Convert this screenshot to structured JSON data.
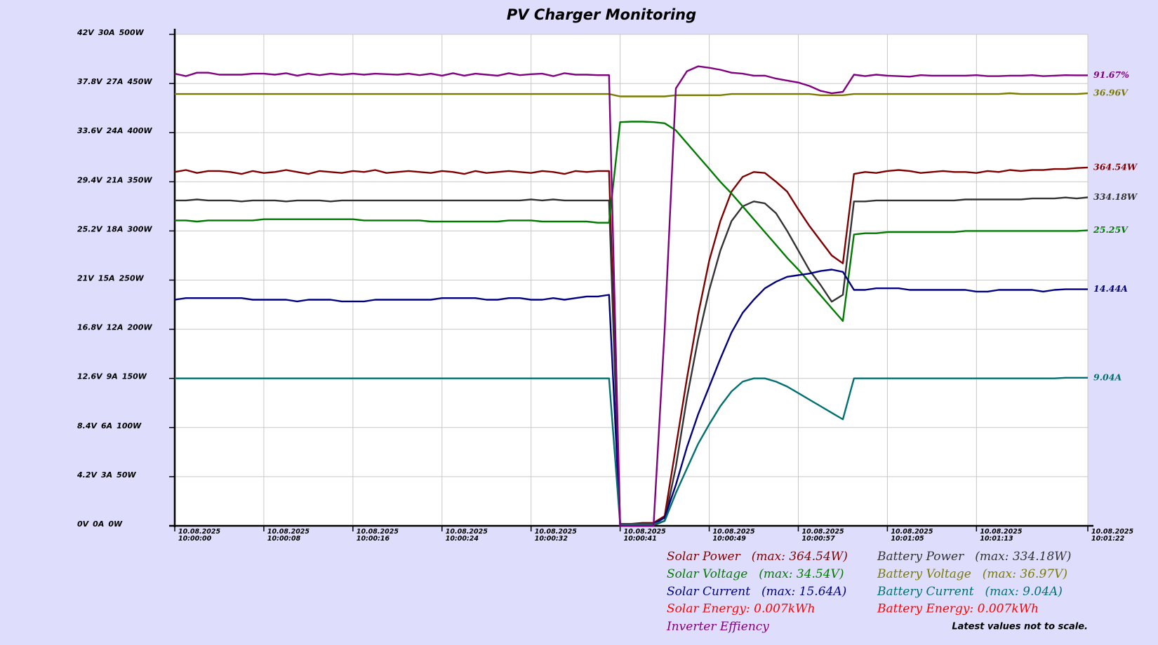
{
  "chart_data": {
    "type": "line",
    "title": "PV Charger Monitoring",
    "x": [
      0,
      1,
      2,
      3,
      4,
      5,
      6,
      7,
      8,
      9,
      10,
      11,
      12,
      13,
      14,
      15,
      16,
      17,
      18,
      19,
      20,
      21,
      22,
      23,
      24,
      25,
      26,
      27,
      28,
      29,
      30,
      31,
      32,
      33,
      34,
      35,
      36,
      37,
      38,
      39,
      40,
      41,
      42,
      43,
      44,
      45,
      46,
      47,
      48,
      49,
      50,
      51,
      52,
      53,
      54,
      55,
      56,
      57,
      58,
      59,
      60,
      61,
      62,
      63,
      64,
      65,
      66,
      67,
      68,
      69,
      70,
      71,
      72,
      73,
      74,
      75,
      76,
      77,
      78,
      79,
      80,
      81,
      82
    ],
    "xlim": [
      0,
      82
    ],
    "xticks": [
      {
        "value": 0,
        "label": "10.08.2025 10:00:00"
      },
      {
        "value": 8,
        "label": "10.08.2025 10:00:08"
      },
      {
        "value": 16,
        "label": "10.08.2025 10:00:16"
      },
      {
        "value": 24,
        "label": "10.08.2025 10:00:24"
      },
      {
        "value": 32,
        "label": "10.08.2025 10:00:32"
      },
      {
        "value": 40,
        "label": "10.08.2025 10:00:41"
      },
      {
        "value": 48,
        "label": "10.08.2025 10:00:49"
      },
      {
        "value": 56,
        "label": "10.08.2025 10:00:57"
      },
      {
        "value": 64,
        "label": "10.08.2025 10:01:05"
      },
      {
        "value": 72,
        "label": "10.08.2025 10:01:13"
      },
      {
        "value": 82,
        "label": "10.08.2025 10:01:22"
      }
    ],
    "ylim": [
      0,
      500
    ],
    "yticks": [
      {
        "value": 0,
        "label": "0W"
      },
      {
        "value": 50,
        "label": "50W"
      },
      {
        "value": 100,
        "label": "100W"
      },
      {
        "value": 150,
        "label": "150W"
      },
      {
        "value": 200,
        "label": "200W"
      },
      {
        "value": 250,
        "label": "250W"
      },
      {
        "value": 300,
        "label": "300W"
      },
      {
        "value": 350,
        "label": "350W"
      },
      {
        "value": 400,
        "label": "400W"
      },
      {
        "value": 450,
        "label": "450W"
      },
      {
        "value": 500,
        "label": "500W"
      }
    ],
    "y2lim": [
      0,
      42
    ],
    "y2ticks": [
      {
        "value": 0,
        "label": "0V"
      },
      {
        "value": 4.2,
        "label": "4.2V"
      },
      {
        "value": 8.4,
        "label": "8.4V"
      },
      {
        "value": 12.6,
        "label": "12.6V"
      },
      {
        "value": 16.8,
        "label": "16.8V"
      },
      {
        "value": 21,
        "label": "21V"
      },
      {
        "value": 25.2,
        "label": "25.2V"
      },
      {
        "value": 29.4,
        "label": "29.4V"
      },
      {
        "value": 33.6,
        "label": "33.6V"
      },
      {
        "value": 37.8,
        "label": "37.8V"
      },
      {
        "value": 42,
        "label": "42V"
      }
    ],
    "y3lim": [
      0,
      30
    ],
    "y3ticks": [
      {
        "value": 0,
        "label": "0A"
      },
      {
        "value": 3,
        "label": "3A"
      },
      {
        "value": 6,
        "label": "6A"
      },
      {
        "value": 9,
        "label": "9A"
      },
      {
        "value": 12,
        "label": "12A"
      },
      {
        "value": 15,
        "label": "15A"
      },
      {
        "value": 18,
        "label": "18A"
      },
      {
        "value": 21,
        "label": "21A"
      },
      {
        "value": 24,
        "label": "24A"
      },
      {
        "value": 27,
        "label": "27A"
      },
      {
        "value": 30,
        "label": "30A"
      }
    ],
    "y4lim": [
      0,
      100
    ],
    "grid": true,
    "series": [
      {
        "name": "Solar Power",
        "max_label": "(max: 364.54W)",
        "last_label": "364.54W",
        "color": "#800000",
        "axis": "y",
        "values": [
          360,
          362,
          359,
          361,
          361,
          360,
          358,
          361,
          359,
          360,
          362,
          360,
          358,
          361,
          360,
          359,
          361,
          360,
          362,
          359,
          360,
          361,
          360,
          359,
          361,
          360,
          358,
          361,
          359,
          360,
          361,
          360,
          359,
          361,
          360,
          358,
          361,
          360,
          361,
          361,
          2,
          2,
          3,
          3,
          10,
          80,
          150,
          215,
          270,
          310,
          340,
          355,
          360,
          359,
          350,
          340,
          322,
          305,
          290,
          275,
          267,
          358,
          360,
          359,
          361,
          362,
          361,
          359,
          360,
          361,
          360,
          360,
          359,
          361,
          360,
          362,
          361,
          362,
          362,
          363,
          363,
          364,
          364.54
        ]
      },
      {
        "name": "Battery Power",
        "max_label": "(max: 334.18W)",
        "last_label": "334.18W",
        "color": "#333333",
        "axis": "y",
        "values": [
          331,
          331,
          332,
          331,
          331,
          331,
          330,
          331,
          331,
          331,
          330,
          331,
          331,
          331,
          330,
          331,
          331,
          331,
          331,
          331,
          331,
          331,
          331,
          331,
          331,
          331,
          331,
          331,
          331,
          331,
          331,
          331,
          332,
          331,
          332,
          331,
          331,
          331,
          331,
          331,
          0.5,
          0.5,
          0.5,
          0.5,
          5,
          60,
          130,
          190,
          240,
          280,
          310,
          325,
          330,
          328,
          318,
          300,
          280,
          260,
          245,
          228,
          235,
          330,
          330,
          331,
          331,
          331,
          331,
          331,
          331,
          331,
          331,
          332,
          332,
          332,
          332,
          332,
          332,
          333,
          333,
          333,
          334,
          333,
          334.18
        ]
      },
      {
        "name": "Solar Voltage",
        "max_label": "(max: 34.54V)",
        "last_label": "25.25V",
        "color": "#007a00",
        "axis": "y2",
        "values": [
          26.1,
          26.1,
          26.0,
          26.1,
          26.1,
          26.1,
          26.1,
          26.1,
          26.2,
          26.2,
          26.2,
          26.2,
          26.2,
          26.2,
          26.2,
          26.2,
          26.2,
          26.1,
          26.1,
          26.1,
          26.1,
          26.1,
          26.1,
          26.0,
          26.0,
          26.0,
          26.0,
          26.0,
          26.0,
          26.0,
          26.1,
          26.1,
          26.1,
          26.0,
          26.0,
          26.0,
          26.0,
          26.0,
          25.9,
          25.9,
          34.5,
          34.54,
          34.54,
          34.5,
          34.4,
          33.8,
          32.7,
          31.6,
          30.5,
          29.4,
          28.4,
          27.3,
          26.2,
          25.1,
          24.0,
          22.9,
          21.9,
          20.8,
          19.7,
          18.6,
          17.5,
          24.9,
          25.0,
          25.0,
          25.1,
          25.1,
          25.1,
          25.1,
          25.1,
          25.1,
          25.1,
          25.2,
          25.2,
          25.2,
          25.2,
          25.2,
          25.2,
          25.2,
          25.2,
          25.2,
          25.2,
          25.2,
          25.25
        ]
      },
      {
        "name": "Battery Voltage",
        "max_label": "(max: 36.97V)",
        "last_label": "36.96V",
        "color": "#7a7a00",
        "axis": "y2",
        "values": [
          36.9,
          36.9,
          36.9,
          36.9,
          36.9,
          36.9,
          36.9,
          36.9,
          36.9,
          36.9,
          36.9,
          36.9,
          36.9,
          36.9,
          36.9,
          36.9,
          36.9,
          36.9,
          36.9,
          36.9,
          36.9,
          36.9,
          36.9,
          36.9,
          36.9,
          36.9,
          36.9,
          36.9,
          36.9,
          36.9,
          36.9,
          36.9,
          36.9,
          36.9,
          36.9,
          36.9,
          36.9,
          36.9,
          36.9,
          36.9,
          36.7,
          36.7,
          36.7,
          36.7,
          36.7,
          36.8,
          36.8,
          36.8,
          36.8,
          36.8,
          36.9,
          36.9,
          36.9,
          36.9,
          36.9,
          36.9,
          36.9,
          36.9,
          36.8,
          36.8,
          36.8,
          36.9,
          36.9,
          36.9,
          36.9,
          36.9,
          36.9,
          36.9,
          36.9,
          36.9,
          36.9,
          36.9,
          36.9,
          36.9,
          36.9,
          36.97,
          36.9,
          36.9,
          36.9,
          36.9,
          36.9,
          36.9,
          36.96
        ]
      },
      {
        "name": "Solar Current",
        "max_label": "(max: 15.64A)",
        "last_label": "14.44A",
        "color": "#000080",
        "axis": "y3",
        "values": [
          13.8,
          13.9,
          13.9,
          13.9,
          13.9,
          13.9,
          13.9,
          13.8,
          13.8,
          13.8,
          13.8,
          13.7,
          13.8,
          13.8,
          13.8,
          13.7,
          13.7,
          13.7,
          13.8,
          13.8,
          13.8,
          13.8,
          13.8,
          13.8,
          13.9,
          13.9,
          13.9,
          13.9,
          13.8,
          13.8,
          13.9,
          13.9,
          13.8,
          13.8,
          13.9,
          13.8,
          13.9,
          14.0,
          14.0,
          14.1,
          0.1,
          0.1,
          0.1,
          0.1,
          0.5,
          2.5,
          4.8,
          6.8,
          8.5,
          10.2,
          11.8,
          13.0,
          13.8,
          14.5,
          14.9,
          15.2,
          15.3,
          15.4,
          15.55,
          15.64,
          15.5,
          14.4,
          14.4,
          14.5,
          14.5,
          14.5,
          14.4,
          14.4,
          14.4,
          14.4,
          14.4,
          14.4,
          14.3,
          14.3,
          14.4,
          14.4,
          14.4,
          14.4,
          14.3,
          14.4,
          14.44,
          14.44,
          14.44
        ]
      },
      {
        "name": "Battery Current",
        "max_label": "(max: 9.04A)",
        "last_label": "9.04A",
        "color": "#007070",
        "axis": "y3",
        "values": [
          9.0,
          9.0,
          9.0,
          9.0,
          9.0,
          9.0,
          9.0,
          9.0,
          9.0,
          9.0,
          9.0,
          9.0,
          9.0,
          9.0,
          9.0,
          9.0,
          9.0,
          9.0,
          9.0,
          9.0,
          9.0,
          9.0,
          9.0,
          9.0,
          9.0,
          9.0,
          9.0,
          9.0,
          9.0,
          9.0,
          9.0,
          9.0,
          9.0,
          9.0,
          9.0,
          9.0,
          9.0,
          9.0,
          9.0,
          9.0,
          0.1,
          0.1,
          0.1,
          0.1,
          0.3,
          2.0,
          3.5,
          5.0,
          6.2,
          7.3,
          8.2,
          8.8,
          9.0,
          9.0,
          8.8,
          8.5,
          8.1,
          7.7,
          7.3,
          6.9,
          6.5,
          9.0,
          9.0,
          9.0,
          9.0,
          9.0,
          9.0,
          9.0,
          9.0,
          9.0,
          9.0,
          9.0,
          9.0,
          9.0,
          9.0,
          9.0,
          9.0,
          9.0,
          9.0,
          9.0,
          9.04,
          9.04,
          9.04
        ]
      },
      {
        "name": "Inverter Effiency",
        "last_label": "91.67%",
        "color": "#800080",
        "axis": "y4",
        "values": [
          92.0,
          91.5,
          92.2,
          92.2,
          91.8,
          91.8,
          91.8,
          92.0,
          92.0,
          91.8,
          92.1,
          91.6,
          92.0,
          91.7,
          92.0,
          91.8,
          92.0,
          91.8,
          92.0,
          91.9,
          91.8,
          92.0,
          91.7,
          92.0,
          91.6,
          92.1,
          91.6,
          92.0,
          91.8,
          91.6,
          92.1,
          91.7,
          91.9,
          92.0,
          91.5,
          92.1,
          91.8,
          91.8,
          91.7,
          91.7,
          0,
          0,
          0,
          0,
          40,
          89,
          92.5,
          93.5,
          93.2,
          92.8,
          92.2,
          92.0,
          91.6,
          91.6,
          91.0,
          90.6,
          90.2,
          89.5,
          88.5,
          88.0,
          88.3,
          91.8,
          91.5,
          91.8,
          91.6,
          91.5,
          91.4,
          91.7,
          91.6,
          91.6,
          91.6,
          91.6,
          91.7,
          91.5,
          91.5,
          91.6,
          91.6,
          91.7,
          91.5,
          91.6,
          91.7,
          91.67,
          91.67
        ]
      }
    ],
    "annotations": [
      "Solar Energy:  0.007kWh",
      "Battery Energy:  0.007kWh"
    ],
    "energy_color": "#ff0000",
    "note": "Latest values not to scale."
  }
}
